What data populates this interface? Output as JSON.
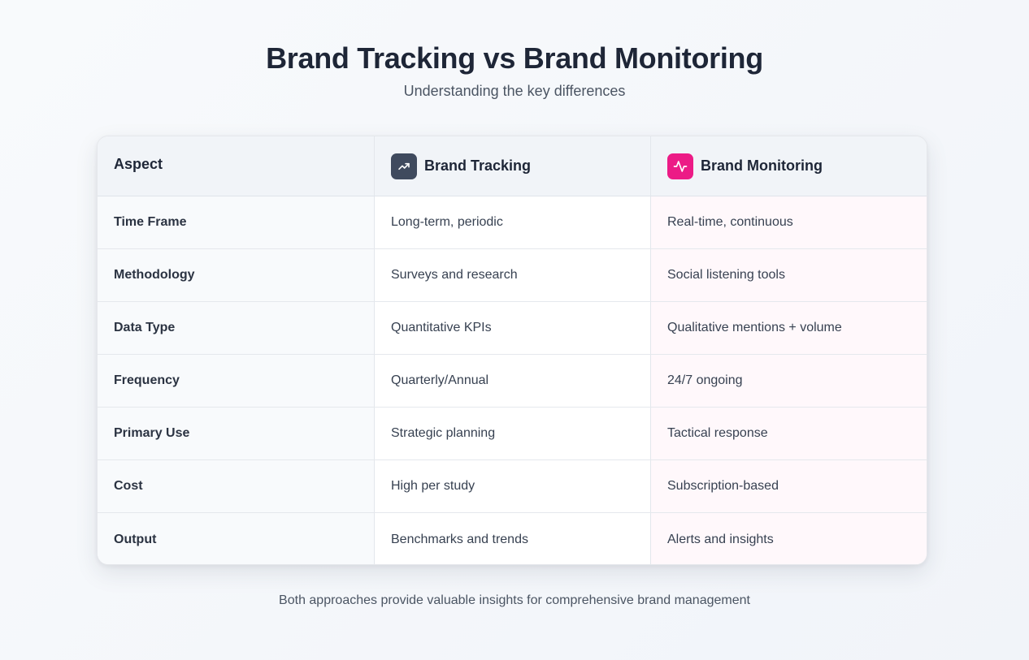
{
  "header": {
    "title": "Brand Tracking vs Brand Monitoring",
    "subtitle": "Understanding the key differences"
  },
  "table": {
    "columns": {
      "aspect": "Aspect",
      "tracking": "Brand Tracking",
      "monitoring": "Brand Monitoring"
    },
    "icons": {
      "tracking": "trending-up-icon",
      "monitoring": "activity-pulse-icon"
    },
    "colors": {
      "tracking_accent": "#3f4a5e",
      "monitoring_accent": "#ec1b86"
    },
    "rows": [
      {
        "aspect": "Time Frame",
        "tracking": "Long-term, periodic",
        "monitoring": "Real-time, continuous"
      },
      {
        "aspect": "Methodology",
        "tracking": "Surveys and research",
        "monitoring": "Social listening tools"
      },
      {
        "aspect": "Data Type",
        "tracking": "Quantitative KPIs",
        "monitoring": "Qualitative mentions + volume"
      },
      {
        "aspect": "Frequency",
        "tracking": "Quarterly/Annual",
        "monitoring": "24/7 ongoing"
      },
      {
        "aspect": "Primary Use",
        "tracking": "Strategic planning",
        "monitoring": "Tactical response"
      },
      {
        "aspect": "Cost",
        "tracking": "High per study",
        "monitoring": "Subscription-based"
      },
      {
        "aspect": "Output",
        "tracking": "Benchmarks and trends",
        "monitoring": "Alerts and insights"
      }
    ]
  },
  "footer": {
    "note": "Both approaches provide valuable insights for comprehensive brand management"
  }
}
